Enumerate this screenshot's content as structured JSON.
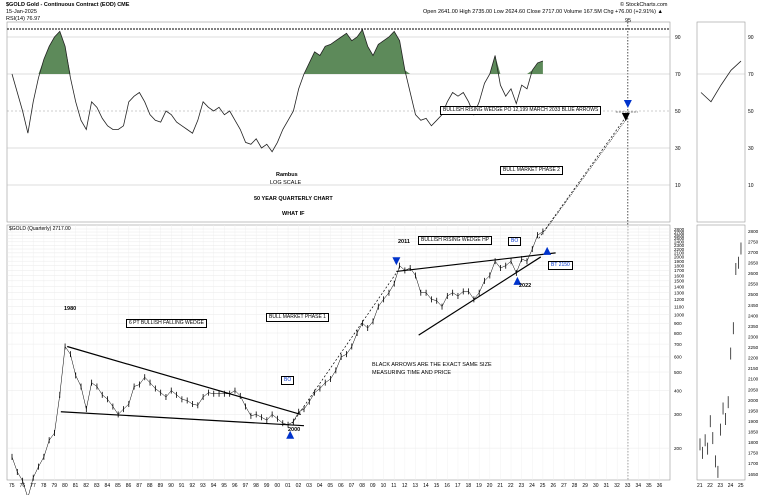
{
  "header": {
    "symbol": "$GOLD Gold - Continuous Contract (EOD) CME",
    "date": "15-Jan-2025",
    "indicator_label": "RSI(14) 76.97",
    "ohlc": "Open 2641.00  High 2735.00  Low 2624.60  Close 2717.00  Volume 167.5M  Chg +76.00 (+2.91%) ▲",
    "brand": "© StockCharts.com",
    "marker_95": "95"
  },
  "chart_data": {
    "type": "line",
    "title": "50 YEAR QUARTERLY CHART",
    "subtitle": "WHAT IF",
    "notes": [
      "Rambus",
      "LOG SCALE"
    ],
    "price_label": "$GOLD (Quarterly) 2717.00",
    "x_years": [
      "75",
      "76",
      "77",
      "78",
      "79",
      "80",
      "81",
      "82",
      "83",
      "84",
      "85",
      "86",
      "87",
      "88",
      "89",
      "90",
      "91",
      "92",
      "93",
      "94",
      "95",
      "96",
      "97",
      "98",
      "99",
      "00",
      "01",
      "02",
      "03",
      "04",
      "05",
      "06",
      "07",
      "08",
      "09",
      "10",
      "11",
      "12",
      "13",
      "14",
      "15",
      "16",
      "17",
      "18",
      "19",
      "20",
      "21",
      "22",
      "23",
      "24",
      "25",
      "26",
      "27",
      "28",
      "29",
      "30",
      "31",
      "32",
      "33",
      "34",
      "35",
      "36"
    ],
    "rsi_ticks": [
      "90",
      "70",
      "50",
      "30",
      "10"
    ],
    "price_ticks": [
      "2800",
      "2700",
      "2600",
      "2500",
      "2400",
      "2300",
      "2200",
      "2100",
      "2000",
      "1900",
      "1800",
      "1700",
      "1600",
      "1500",
      "1400",
      "1300",
      "1200",
      "1100",
      "1000",
      "900",
      "800",
      "700",
      "600",
      "500",
      "400",
      "300",
      "200"
    ],
    "inset_x": [
      "21",
      "22",
      "23",
      "24",
      "25"
    ],
    "inset_ticks": [
      "2800",
      "2750",
      "2700",
      "2650",
      "2600",
      "2550",
      "2500",
      "2450",
      "2400",
      "2350",
      "2300",
      "2250",
      "2200",
      "2150",
      "2100",
      "2050",
      "2000",
      "1950",
      "1900",
      "1850",
      "1800",
      "1750",
      "1700",
      "1650"
    ],
    "price_series": [
      [
        1975.0,
        180
      ],
      [
        1975.5,
        150
      ],
      [
        1976.0,
        135
      ],
      [
        1976.5,
        110
      ],
      [
        1977.0,
        140
      ],
      [
        1977.5,
        160
      ],
      [
        1978.0,
        180
      ],
      [
        1978.5,
        220
      ],
      [
        1979.0,
        240
      ],
      [
        1979.5,
        380
      ],
      [
        1980.0,
        680
      ],
      [
        1980.5,
        620
      ],
      [
        1981.0,
        480
      ],
      [
        1981.5,
        420
      ],
      [
        1982.0,
        320
      ],
      [
        1982.5,
        440
      ],
      [
        1983.0,
        420
      ],
      [
        1983.5,
        380
      ],
      [
        1984.0,
        360
      ],
      [
        1984.5,
        330
      ],
      [
        1985.0,
        300
      ],
      [
        1985.5,
        320
      ],
      [
        1986.0,
        340
      ],
      [
        1986.5,
        420
      ],
      [
        1987.0,
        430
      ],
      [
        1987.5,
        470
      ],
      [
        1988.0,
        440
      ],
      [
        1988.5,
        410
      ],
      [
        1989.0,
        390
      ],
      [
        1989.5,
        370
      ],
      [
        1990.0,
        400
      ],
      [
        1990.5,
        380
      ],
      [
        1991.0,
        360
      ],
      [
        1991.5,
        355
      ],
      [
        1992.0,
        340
      ],
      [
        1992.5,
        335
      ],
      [
        1993.0,
        370
      ],
      [
        1993.5,
        390
      ],
      [
        1994.0,
        385
      ],
      [
        1994.5,
        385
      ],
      [
        1995.0,
        385
      ],
      [
        1995.5,
        385
      ],
      [
        1996.0,
        400
      ],
      [
        1996.5,
        375
      ],
      [
        1997.0,
        330
      ],
      [
        1997.5,
        295
      ],
      [
        1998.0,
        300
      ],
      [
        1998.5,
        290
      ],
      [
        1999.0,
        280
      ],
      [
        1999.5,
        300
      ],
      [
        2000.0,
        285
      ],
      [
        2000.5,
        270
      ],
      [
        2001.0,
        265
      ],
      [
        2001.5,
        275
      ],
      [
        2002.0,
        310
      ],
      [
        2002.5,
        320
      ],
      [
        2003.0,
        350
      ],
      [
        2003.5,
        390
      ],
      [
        2004.0,
        410
      ],
      [
        2004.5,
        440
      ],
      [
        2005.0,
        460
      ],
      [
        2005.5,
        510
      ],
      [
        2006.0,
        600
      ],
      [
        2006.5,
        620
      ],
      [
        2007.0,
        680
      ],
      [
        2007.5,
        800
      ],
      [
        2008.0,
        900
      ],
      [
        2008.5,
        850
      ],
      [
        2009.0,
        920
      ],
      [
        2009.5,
        1100
      ],
      [
        2010.0,
        1200
      ],
      [
        2010.5,
        1300
      ],
      [
        2011.0,
        1450
      ],
      [
        2011.5,
        1800
      ],
      [
        2012.0,
        1700
      ],
      [
        2012.5,
        1750
      ],
      [
        2013.0,
        1600
      ],
      [
        2013.5,
        1300
      ],
      [
        2014.0,
        1300
      ],
      [
        2014.5,
        1200
      ],
      [
        2015.0,
        1180
      ],
      [
        2015.5,
        1100
      ],
      [
        2016.0,
        1250
      ],
      [
        2016.5,
        1300
      ],
      [
        2017.0,
        1250
      ],
      [
        2017.5,
        1320
      ],
      [
        2018.0,
        1320
      ],
      [
        2018.5,
        1200
      ],
      [
        2019.0,
        1300
      ],
      [
        2019.5,
        1500
      ],
      [
        2020.0,
        1600
      ],
      [
        2020.5,
        1900
      ],
      [
        2021.0,
        1750
      ],
      [
        2021.5,
        1800
      ],
      [
        2022.0,
        1900
      ],
      [
        2022.5,
        1650
      ],
      [
        2023.0,
        1950
      ],
      [
        2023.5,
        1900
      ],
      [
        2024.0,
        2200
      ],
      [
        2024.5,
        2600
      ],
      [
        2025.0,
        2717
      ]
    ],
    "rsi_series": [
      [
        1975.0,
        70
      ],
      [
        1975.5,
        60
      ],
      [
        1976.0,
        50
      ],
      [
        1976.5,
        38
      ],
      [
        1977.0,
        55
      ],
      [
        1977.5,
        68
      ],
      [
        1978.0,
        78
      ],
      [
        1978.5,
        85
      ],
      [
        1979.0,
        90
      ],
      [
        1979.5,
        93
      ],
      [
        1980.0,
        85
      ],
      [
        1980.5,
        68
      ],
      [
        1981.0,
        55
      ],
      [
        1981.5,
        45
      ],
      [
        1982.0,
        40
      ],
      [
        1982.5,
        55
      ],
      [
        1983.0,
        52
      ],
      [
        1983.5,
        46
      ],
      [
        1984.0,
        42
      ],
      [
        1984.5,
        40
      ],
      [
        1985.0,
        40
      ],
      [
        1985.5,
        42
      ],
      [
        1986.0,
        55
      ],
      [
        1986.5,
        58
      ],
      [
        1987.0,
        60
      ],
      [
        1987.5,
        55
      ],
      [
        1988.0,
        48
      ],
      [
        1988.5,
        45
      ],
      [
        1989.0,
        44
      ],
      [
        1989.5,
        50
      ],
      [
        1990.0,
        48
      ],
      [
        1990.5,
        44
      ],
      [
        1991.0,
        42
      ],
      [
        1991.5,
        40
      ],
      [
        1992.0,
        38
      ],
      [
        1992.5,
        45
      ],
      [
        1993.0,
        55
      ],
      [
        1993.5,
        52
      ],
      [
        1994.0,
        50
      ],
      [
        1994.5,
        52
      ],
      [
        1995.0,
        48
      ],
      [
        1995.5,
        50
      ],
      [
        1996.0,
        45
      ],
      [
        1996.5,
        40
      ],
      [
        1997.0,
        33
      ],
      [
        1997.5,
        32
      ],
      [
        1998.0,
        35
      ],
      [
        1998.5,
        30
      ],
      [
        1999.0,
        32
      ],
      [
        1999.5,
        28
      ],
      [
        2000.0,
        33
      ],
      [
        2000.5,
        40
      ],
      [
        2001.0,
        45
      ],
      [
        2001.5,
        50
      ],
      [
        2002.0,
        62
      ],
      [
        2002.5,
        70
      ],
      [
        2003.0,
        76
      ],
      [
        2003.5,
        82
      ],
      [
        2004.0,
        80
      ],
      [
        2004.5,
        85
      ],
      [
        2005.0,
        86
      ],
      [
        2005.5,
        88
      ],
      [
        2006.0,
        90
      ],
      [
        2006.5,
        92
      ],
      [
        2007.0,
        88
      ],
      [
        2007.5,
        90
      ],
      [
        2008.0,
        94
      ],
      [
        2008.5,
        85
      ],
      [
        2009.0,
        80
      ],
      [
        2009.5,
        86
      ],
      [
        2010.0,
        88
      ],
      [
        2010.5,
        90
      ],
      [
        2011.0,
        93
      ],
      [
        2011.5,
        88
      ],
      [
        2012.0,
        72
      ],
      [
        2012.5,
        60
      ],
      [
        2013.0,
        48
      ],
      [
        2013.5,
        45
      ],
      [
        2014.0,
        46
      ],
      [
        2014.5,
        42
      ],
      [
        2015.0,
        45
      ],
      [
        2015.5,
        48
      ],
      [
        2016.0,
        55
      ],
      [
        2016.5,
        60
      ],
      [
        2017.0,
        58
      ],
      [
        2017.5,
        60
      ],
      [
        2018.0,
        55
      ],
      [
        2018.5,
        48
      ],
      [
        2019.0,
        55
      ],
      [
        2019.5,
        65
      ],
      [
        2020.0,
        70
      ],
      [
        2020.5,
        80
      ],
      [
        2021.0,
        64
      ],
      [
        2021.5,
        58
      ],
      [
        2022.0,
        62
      ],
      [
        2022.5,
        54
      ],
      [
        2023.0,
        64
      ],
      [
        2023.5,
        62
      ],
      [
        2024.0,
        72
      ],
      [
        2024.5,
        76
      ],
      [
        2025.0,
        77
      ]
    ],
    "inset_series": [
      [
        2021.0,
        1790
      ],
      [
        2021.25,
        1750
      ],
      [
        2021.5,
        1810
      ],
      [
        2021.75,
        1770
      ],
      [
        2022.0,
        1900
      ],
      [
        2022.25,
        1820
      ],
      [
        2022.5,
        1710
      ],
      [
        2022.75,
        1660
      ],
      [
        2023.0,
        1860
      ],
      [
        2023.25,
        1960
      ],
      [
        2023.5,
        1910
      ],
      [
        2023.75,
        1990
      ],
      [
        2024.0,
        2220
      ],
      [
        2024.25,
        2340
      ],
      [
        2024.5,
        2620
      ],
      [
        2024.75,
        2650
      ],
      [
        2025.0,
        2717
      ]
    ],
    "annotations": {
      "y1980": "1980",
      "wedge1": "6 PT BULLISH FALLING WEDGE",
      "bull1": "BULL MARKET PHASE 1",
      "y2011": "2011",
      "wedge2": "BULLISH RISING WEDGE HP",
      "bo1": "BO",
      "y2000": "2000",
      "bo2": "BO",
      "bt": "BT 2150",
      "y2022": "2022",
      "black_arrows": "BLACK ARROWS ARE THE EXACT SAME SIZE",
      "measuring": "MEASURING TIME AND PRICE",
      "bull2": "BULL MARKET PHASE 2",
      "target": "BULLISH RISING WEDGE PO 12,199  MARCH 2033 BLUE ARROWS"
    },
    "colors": {
      "rsi_fill": "#5d8a5a",
      "line": "#000000",
      "arrow": "#0033cc"
    },
    "grid": true,
    "scale": "log"
  }
}
